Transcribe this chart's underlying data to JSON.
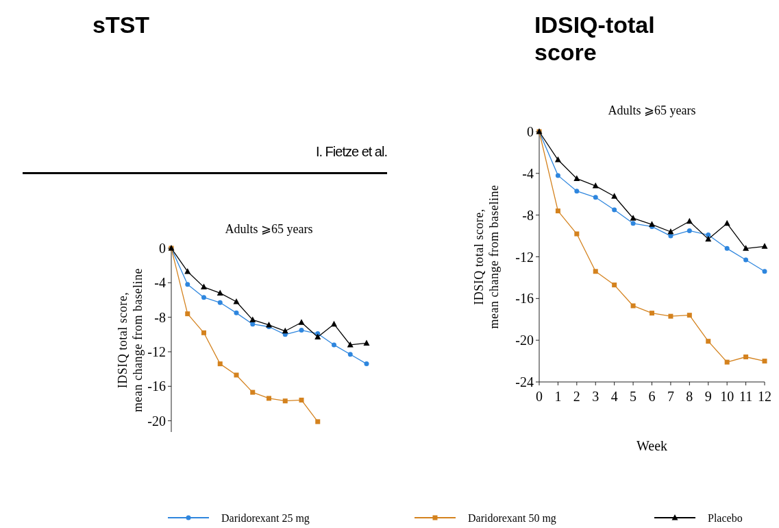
{
  "chart_data": [
    {
      "type": "line",
      "title": "sTST",
      "subtitle": "Adults ⩾65 years",
      "ylabel": "IDSIQ total score,\nmean change from baseline",
      "annotations": [
        "I. Fietze et al."
      ],
      "categories": [
        null,
        null,
        null,
        null,
        null,
        null,
        null,
        null,
        null,
        null,
        null,
        null,
        null
      ],
      "ylim": [
        -21.3,
        0
      ],
      "yticks": [
        0,
        -4,
        -8,
        -12,
        -16,
        -20
      ],
      "tick_labels": "y",
      "series": [
        {
          "color": "#2e86de",
          "marker": "circle",
          "values": [
            0,
            -4.2,
            -5.7,
            -6.3,
            -7.5,
            -8.8,
            -9.1,
            -10.0,
            -9.5,
            -9.9,
            -11.2,
            -12.3,
            -13.4
          ]
        },
        {
          "color": "#d4821e",
          "marker": "square",
          "values": [
            0,
            -7.6,
            -9.8,
            -13.4,
            -14.7,
            -16.7,
            -17.4,
            -17.7,
            -17.6,
            -20.1,
            null,
            null,
            null
          ]
        },
        {
          "color": "#000000",
          "marker": "triangle",
          "values": [
            0,
            -2.7,
            -4.5,
            -5.2,
            -6.2,
            -8.3,
            -8.9,
            -9.6,
            -8.6,
            -10.3,
            -8.8,
            -11.2,
            -11.0
          ]
        }
      ]
    },
    {
      "type": "line",
      "title": "IDSIQ-total score",
      "subtitle": "Adults ⩾65 years",
      "xlabel": "Week",
      "ylabel": "IDSIQ total score,\nmean change from baseline",
      "x": [
        0,
        1,
        2,
        3,
        4,
        5,
        6,
        7,
        8,
        9,
        10,
        11,
        12
      ],
      "xlim": [
        0,
        12
      ],
      "xticks": [
        0,
        1,
        2,
        3,
        4,
        5,
        6,
        7,
        8,
        9,
        10,
        11,
        12
      ],
      "ylim": [
        -24,
        0
      ],
      "yticks": [
        0,
        -4,
        -8,
        -12,
        -16,
        -20,
        -24
      ],
      "legend": "bottom",
      "series": [
        {
          "name": "Daridorexant 25 mg",
          "color": "#2e86de",
          "marker": "circle",
          "values": [
            0,
            -4.2,
            -5.7,
            -6.3,
            -7.5,
            -8.8,
            -9.1,
            -10.0,
            -9.5,
            -9.9,
            -11.2,
            -12.3,
            -13.4
          ]
        },
        {
          "name": "Daridorexant 50 mg",
          "color": "#d4821e",
          "marker": "square",
          "values": [
            0,
            -7.6,
            -9.8,
            -13.4,
            -14.7,
            -16.7,
            -17.4,
            -17.7,
            -17.6,
            -20.1,
            -22.1,
            -21.6,
            -22.0
          ]
        },
        {
          "name": "Placebo",
          "color": "#000000",
          "marker": "triangle",
          "values": [
            0,
            -2.7,
            -4.5,
            -5.2,
            -6.2,
            -8.3,
            -8.9,
            -9.6,
            -8.6,
            -10.3,
            -8.8,
            -11.2,
            -11.0
          ]
        }
      ]
    }
  ]
}
